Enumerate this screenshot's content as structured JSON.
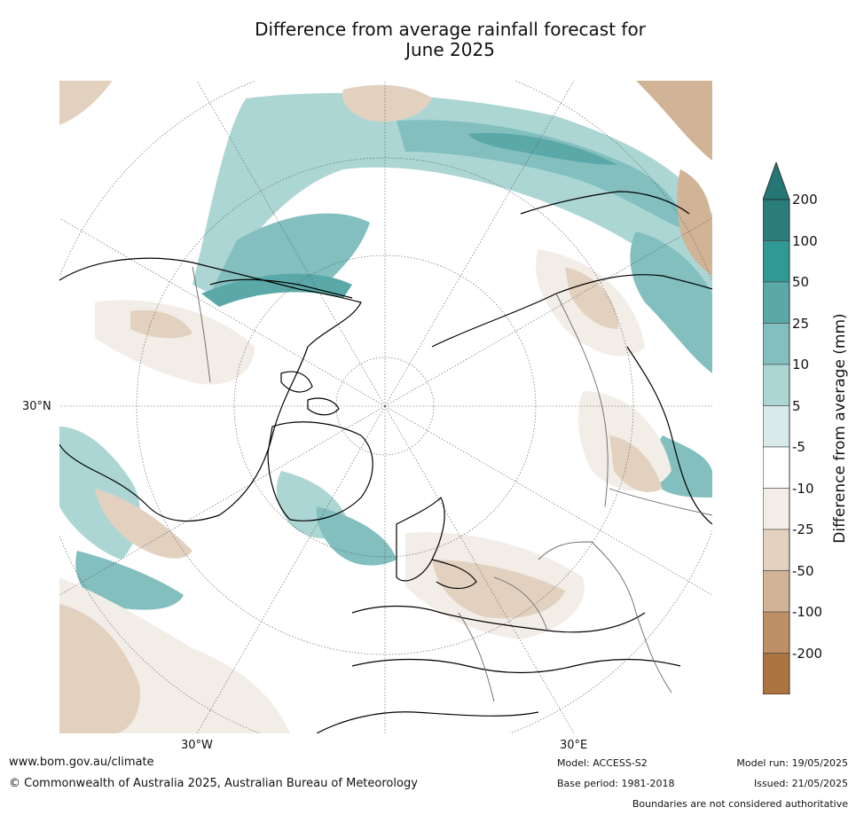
{
  "title": {
    "line1": "Difference from average rainfall forecast for",
    "line2": "June 2025"
  },
  "map": {
    "projection": "north-polar-stereographic",
    "tick_labels": {
      "lat_30n": "30°N",
      "lon_30w": "30°W",
      "lon_30e": "30°E"
    }
  },
  "legend": {
    "title": "Difference from average (mm)",
    "bins": [
      {
        "label": "200",
        "color": "#2a7d7a"
      },
      {
        "label": "100",
        "color": "#2f9996"
      },
      {
        "label": "50",
        "color": "#5aa9a8"
      },
      {
        "label": "25",
        "color": "#82bfbe"
      },
      {
        "label": "10",
        "color": "#acd6d4"
      },
      {
        "label": "5",
        "color": "#d8ebea"
      },
      {
        "label": "-5",
        "color": "#ffffff"
      },
      {
        "label": "-10",
        "color": "#f2ede7"
      },
      {
        "label": "-25",
        "color": "#e3d1c0"
      },
      {
        "label": "-50",
        "color": "#d1b396"
      },
      {
        "label": "-100",
        "color": "#bf9068"
      },
      {
        "label": "-200",
        "color": "#ac7440"
      }
    ],
    "over_color": "#247774",
    "under_color": "#935b22"
  },
  "footer": {
    "website": "www.bom.gov.au/climate",
    "copyright": "© Commonwealth of Australia 2025, Australian Bureau of Meteorology",
    "model": "Model: ACCESS-S2",
    "model_run": "Model run: 19/05/2025",
    "base_period": "Base period: 1981-2018",
    "issued": "Issued: 21/05/2025",
    "boundaries_note": "Boundaries are not considered authoritative"
  }
}
